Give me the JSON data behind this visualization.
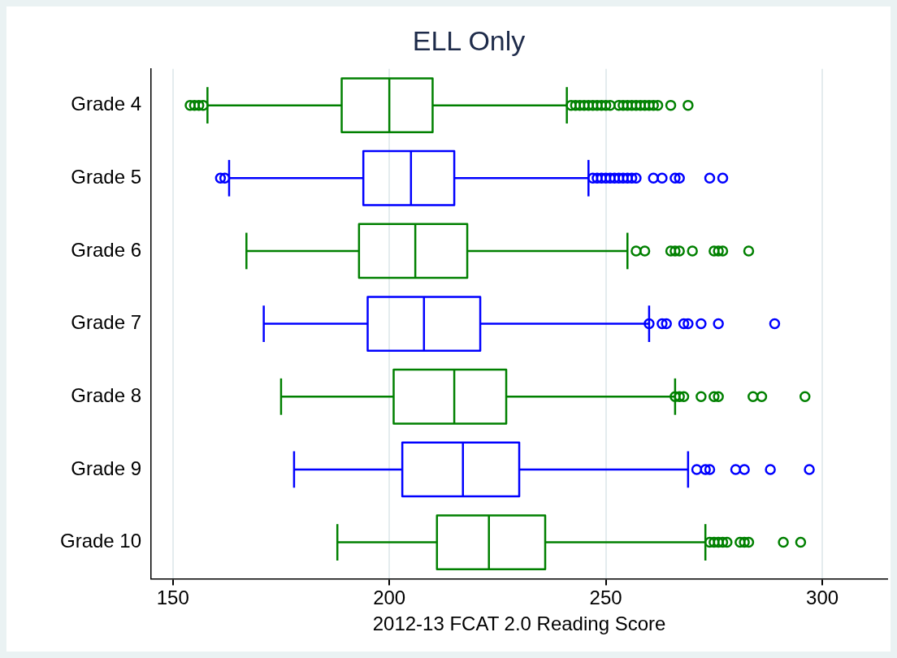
{
  "chart_data": {
    "type": "box",
    "title": "ELL Only",
    "xlabel": "2012-13 FCAT 2.0 Reading Score",
    "orientation": "horizontal",
    "categories": [
      "Grade 4",
      "Grade 5",
      "Grade 6",
      "Grade 7",
      "Grade 8",
      "Grade 9",
      "Grade 10"
    ],
    "colors": [
      "#008000",
      "#0000ff",
      "#008000",
      "#0000ff",
      "#008000",
      "#0000ff",
      "#008000"
    ],
    "boxes": [
      {
        "low": 158,
        "q1": 189,
        "median": 200,
        "q3": 210,
        "high": 241,
        "outliers": [
          154,
          155,
          156,
          157,
          242,
          243,
          244,
          245,
          246,
          247,
          248,
          249,
          250,
          251,
          253,
          254,
          255,
          256,
          257,
          258,
          259,
          260,
          261,
          262,
          265,
          269
        ]
      },
      {
        "low": 163,
        "q1": 194,
        "median": 205,
        "q3": 215,
        "high": 246,
        "outliers": [
          161,
          162,
          247,
          248,
          249,
          250,
          251,
          252,
          253,
          254,
          255,
          256,
          257,
          261,
          263,
          266,
          267,
          274,
          277
        ]
      },
      {
        "low": 167,
        "q1": 193,
        "median": 206,
        "q3": 218,
        "high": 255,
        "outliers": [
          257,
          259,
          265,
          266,
          267,
          270,
          275,
          276,
          277,
          283
        ]
      },
      {
        "low": 171,
        "q1": 195,
        "median": 208,
        "q3": 221,
        "high": 260,
        "outliers": [
          260,
          263,
          264,
          268,
          269,
          272,
          276,
          289
        ]
      },
      {
        "low": 175,
        "q1": 201,
        "median": 215,
        "q3": 227,
        "high": 266,
        "outliers": [
          266,
          267,
          268,
          272,
          275,
          276,
          284,
          286,
          296
        ]
      },
      {
        "low": 178,
        "q1": 203,
        "median": 217,
        "q3": 230,
        "high": 269,
        "outliers": [
          271,
          273,
          274,
          280,
          282,
          288,
          297
        ]
      },
      {
        "low": 188,
        "q1": 211,
        "median": 223,
        "q3": 236,
        "high": 273,
        "outliers": [
          274,
          275,
          276,
          277,
          278,
          281,
          282,
          283,
          291,
          295
        ]
      }
    ],
    "xlim": [
      145,
      315
    ],
    "xticks": [
      150,
      200,
      250,
      300
    ],
    "grid": "x",
    "marker": "circle"
  }
}
